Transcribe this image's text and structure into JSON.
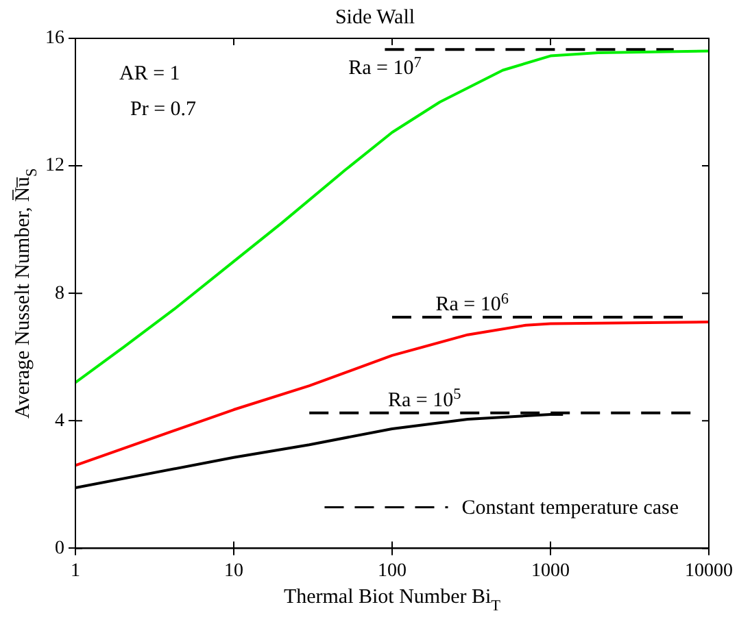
{
  "chart_data": {
    "type": "line",
    "title": "Side Wall",
    "xlabel": "Thermal Biot Number Bi$_{T}$",
    "ylabel": "Average Nusselt Number, N̅u̅$_{S}$",
    "log": "x",
    "xlim": [
      1,
      10000
    ],
    "xticks": [
      1,
      10,
      100,
      1000,
      10000
    ],
    "ylim": [
      0,
      16
    ],
    "yticks": [
      0,
      4,
      8,
      12,
      16
    ],
    "grid": false,
    "legend": "bottom right",
    "marker": "none",
    "series": [
      {
        "color": "#00ee00",
        "x": [
          1,
          2,
          4.2,
          10,
          20,
          50,
          100,
          200,
          500,
          1000,
          2000,
          10000
        ],
        "values": [
          5.2,
          6.3,
          7.5,
          9.0,
          10.2,
          11.85,
          13.05,
          14.0,
          15.0,
          15.45,
          15.55,
          15.6
        ]
      },
      {
        "color": "#ff0000",
        "x": [
          1,
          10,
          30,
          100,
          300,
          700,
          1000,
          10000
        ],
        "values": [
          2.6,
          4.35,
          5.1,
          6.05,
          6.7,
          7.0,
          7.05,
          7.1
        ]
      },
      {
        "color": "#000000",
        "x": [
          1,
          10,
          30,
          100,
          300,
          1000,
          1200
        ],
        "values": [
          1.9,
          2.85,
          3.25,
          3.75,
          4.05,
          4.2,
          4.2
        ]
      },
      {
        "name": "Constant temperature case",
        "color": "#000000",
        "line_style": "dashed",
        "x": [
          90,
          6000
        ],
        "values": [
          15.65,
          15.65
        ]
      },
      {
        "color": "#000000",
        "line_style": "dashed",
        "x": [
          100,
          7000
        ],
        "values": [
          7.25,
          7.25
        ]
      },
      {
        "color": "#000000",
        "line_style": "dashed",
        "x": [
          30,
          8000
        ],
        "values": [
          4.25,
          4.25
        ]
      }
    ],
    "annotations": [
      "AR = 1",
      "Pr = 0.7",
      {
        "text": "Ra = 10$^{7}$",
        "x": 90,
        "y": 15.65
      },
      {
        "text": "Ra = 10$^{6}$",
        "x": 320,
        "y": 7.25
      },
      {
        "text": "Ra = 10$^{5}$",
        "x": 160,
        "y": 4.25
      }
    ]
  }
}
